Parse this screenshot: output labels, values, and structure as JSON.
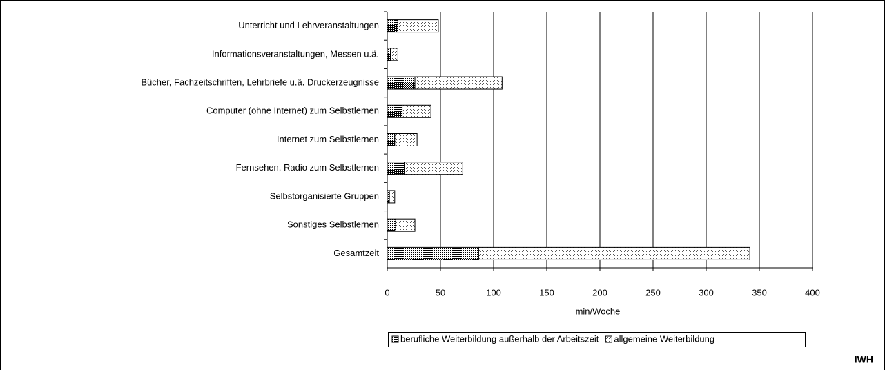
{
  "chart_data": {
    "type": "stacked_barh",
    "categories": [
      "Unterricht und Lehrveranstaltungen",
      "Informationsveranstaltungen, Messen u.ä.",
      "Bücher, Fachzeitschriften, Lehrbriefe u.ä. Druckerzeugnisse",
      "Computer (ohne Internet) zum Selbstlernen",
      "Internet zum Selbstlernen",
      "Fernsehen, Radio zum Selbstlernen",
      "Selbstorganisierte Gruppen",
      "Sonstiges Selbstlernen",
      "Gesamtzeit"
    ],
    "series": [
      {
        "name": "berufliche Weiterbildung außerhalb der Arbeitszeit",
        "color": "#000000",
        "values": [
          10,
          3,
          26,
          14,
          7,
          16,
          2,
          8,
          86
        ]
      },
      {
        "name": "allgemeine Weiterbildung",
        "color": "#555555",
        "values": [
          38,
          7,
          82,
          27,
          21,
          55,
          5,
          18,
          255
        ]
      }
    ],
    "xlim": [
      0,
      400
    ],
    "xticks": [
      0,
      50,
      100,
      150,
      200,
      250,
      300,
      350,
      400
    ],
    "xlabel": "min/Woche",
    "grid": true,
    "legend": "bottom",
    "source": "IWH"
  }
}
